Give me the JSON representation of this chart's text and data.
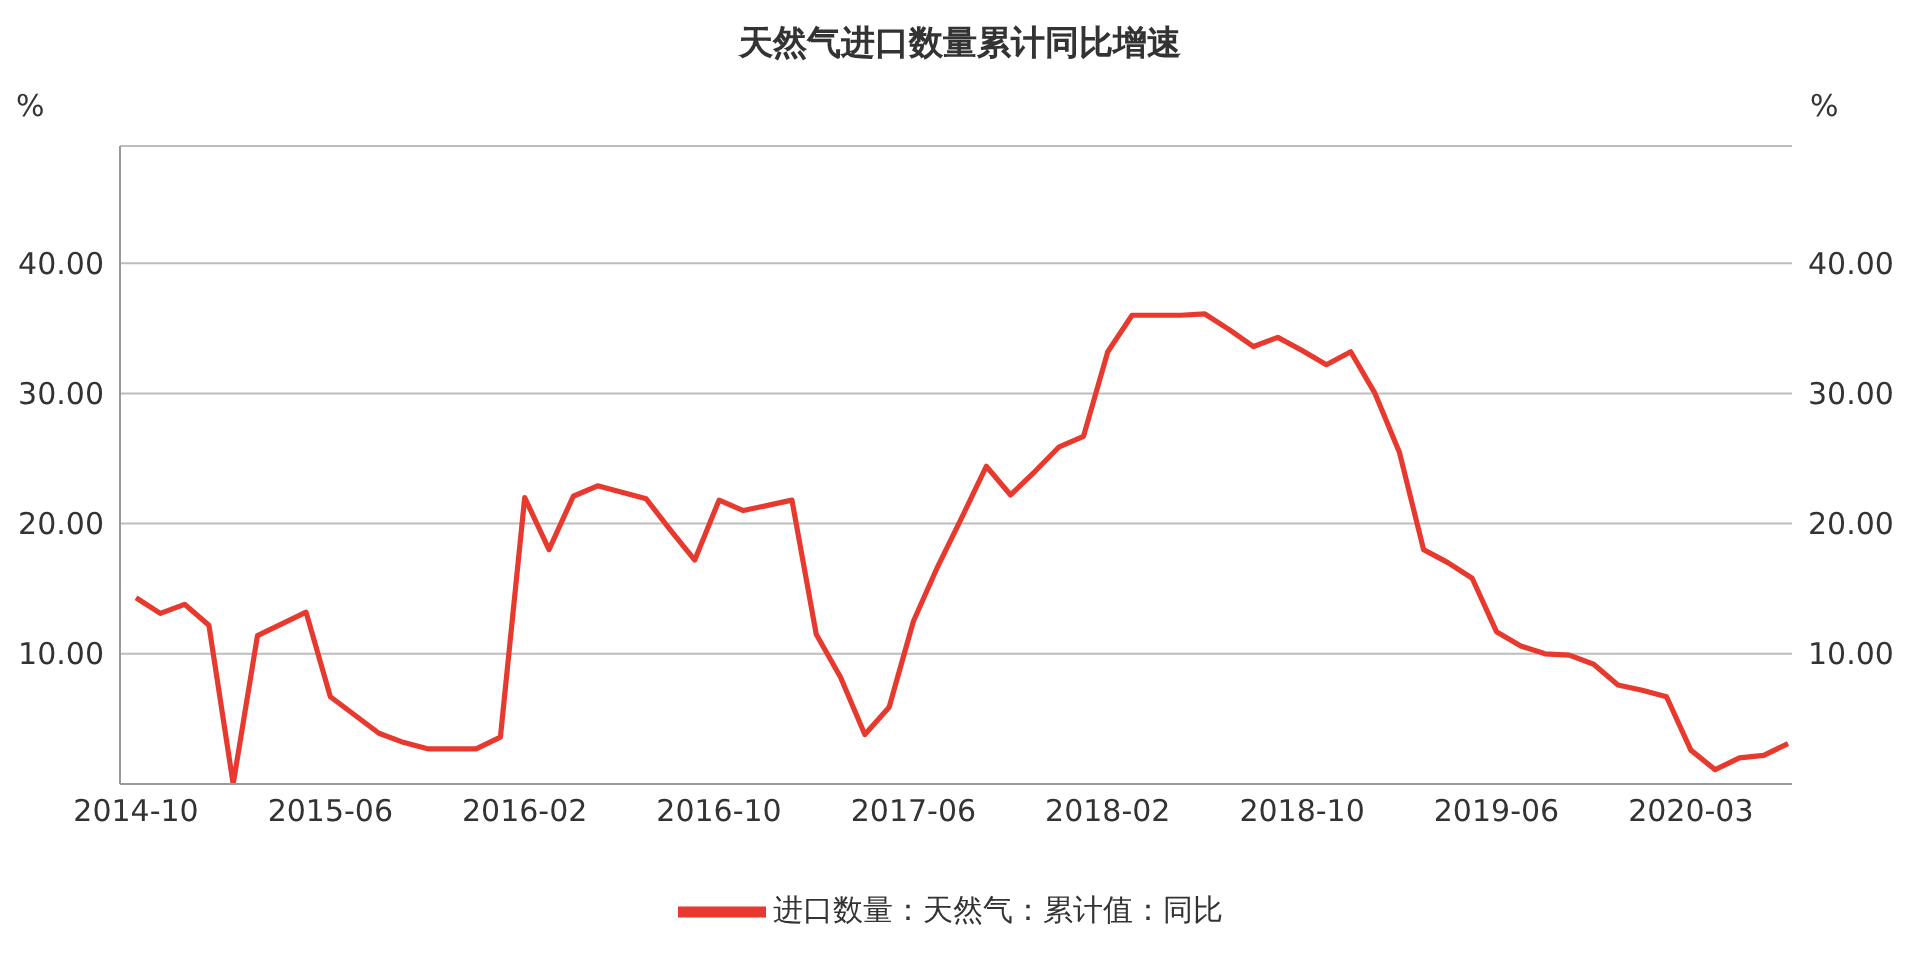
{
  "chart_data": {
    "type": "line",
    "title": "天然气进口数量累计同比增速",
    "ylabel": "%",
    "y2label": "%",
    "categories": [
      "2014-10",
      null,
      null,
      null,
      null,
      null,
      null,
      null,
      "2015-06",
      null,
      null,
      null,
      null,
      null,
      null,
      null,
      "2016-02",
      null,
      null,
      null,
      null,
      null,
      null,
      null,
      "2016-10",
      null,
      null,
      null,
      null,
      null,
      null,
      null,
      "2017-06",
      null,
      null,
      null,
      null,
      null,
      null,
      null,
      "2018-02",
      null,
      null,
      null,
      null,
      null,
      null,
      null,
      "2018-10",
      null,
      null,
      null,
      null,
      null,
      null,
      null,
      "2019-06",
      null,
      null,
      null,
      null,
      null,
      null,
      null,
      "2020-03",
      null,
      null,
      null,
      null
    ],
    "series": [
      {
        "name": "进口数量：天然气：累计值：同比",
        "color": "#e8392f",
        "values": [
          14.3,
          13.1,
          13.8,
          12.2,
          0,
          11.4,
          12.3,
          13.2,
          6.7,
          5.3,
          3.9,
          3.2,
          2.7,
          2.7,
          2.7,
          3.6,
          22.0,
          18.0,
          22.1,
          22.9,
          22.4,
          21.9,
          19.5,
          17.2,
          21.8,
          21.0,
          21.4,
          21.8,
          11.5,
          8.2,
          3.8,
          5.9,
          12.5,
          16.7,
          20.5,
          24.4,
          22.2,
          24.0,
          25.9,
          26.7,
          33.2,
          36.0,
          36.0,
          36.0,
          36.1,
          34.9,
          33.6,
          34.3,
          33.3,
          32.2,
          33.2,
          30.0,
          25.5,
          18.0,
          17.0,
          15.8,
          11.7,
          10.6,
          10.0,
          9.9,
          9.2,
          7.6,
          7.2,
          6.7,
          2.6,
          1.1,
          2.0,
          2.2,
          3.1
        ]
      }
    ],
    "ylim": [
      0,
      49
    ],
    "yticks": [
      {
        "value": 10,
        "label": "10.00"
      },
      {
        "value": 20,
        "label": "20.00"
      },
      {
        "value": 30,
        "label": "30.00"
      },
      {
        "value": 40,
        "label": "40.00"
      }
    ],
    "y2lim": [
      0,
      49
    ],
    "y2ticks": [
      {
        "value": 10,
        "label": "10.00"
      },
      {
        "value": 20,
        "label": "20.00"
      },
      {
        "value": 30,
        "label": "30.00"
      },
      {
        "value": 40,
        "label": "40.00"
      }
    ],
    "grid": "y",
    "legend": "bottom",
    "marker": "none",
    "line_style": "solid"
  }
}
